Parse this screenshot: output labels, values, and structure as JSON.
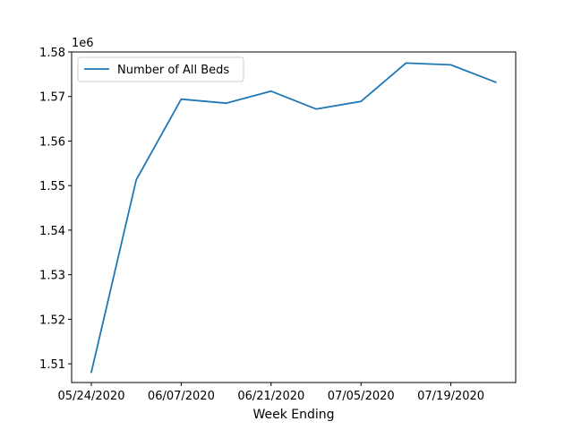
{
  "chart_data": {
    "type": "line",
    "xlabel": "Week Ending",
    "ylabel": "",
    "y_offset_label": "1e6",
    "x": [
      "05/24/2020",
      "05/31/2020",
      "06/07/2020",
      "06/14/2020",
      "06/21/2020",
      "06/28/2020",
      "07/05/2020",
      "07/12/2020",
      "07/19/2020",
      "07/26/2020"
    ],
    "x_tick_labels": [
      "05/24/2020",
      "06/07/2020",
      "06/21/2020",
      "07/05/2020",
      "07/19/2020"
    ],
    "series": [
      {
        "name": "Number of All Beds",
        "color": "#1f77b4",
        "values": [
          1508100,
          1551300,
          1569400,
          1568500,
          1571200,
          1567200,
          1568900,
          1577500,
          1577100,
          1573200
        ]
      }
    ],
    "ylim": [
      1505800,
      1580000
    ],
    "y_ticks": [
      1.51,
      1.52,
      1.53,
      1.54,
      1.55,
      1.56,
      1.57,
      1.58
    ],
    "y_tick_scale": 1000000,
    "legend_position": "upper-left",
    "grid": false
  }
}
